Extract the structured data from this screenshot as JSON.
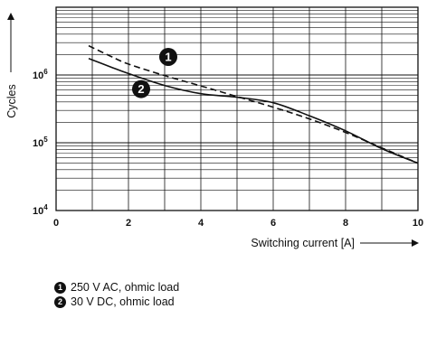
{
  "chart_data": {
    "type": "line",
    "xlabel": "Switching current [A]",
    "ylabel": "Cycles",
    "xlim": [
      0,
      10
    ],
    "ylim": [
      10000,
      10000000
    ],
    "y_scale": "log",
    "grid": true,
    "x_ticks": [
      0,
      2,
      4,
      6,
      8,
      10
    ],
    "y_ticks": [
      {
        "value": 10000,
        "base": "10",
        "exp": "4"
      },
      {
        "value": 100000,
        "base": "10",
        "exp": "5"
      },
      {
        "value": 1000000,
        "base": "10",
        "exp": "6"
      }
    ],
    "series": [
      {
        "marker": "1",
        "style": "dashed",
        "x": [
          0.9,
          1.5,
          2,
          3,
          4,
          5,
          6,
          7,
          8,
          9,
          10
        ],
        "y": [
          2700000,
          1900000,
          1450000,
          980000,
          690000,
          480000,
          335000,
          225000,
          142000,
          84000,
          50000
        ]
      },
      {
        "marker": "2",
        "style": "solid",
        "x": [
          0.9,
          1.5,
          2,
          3,
          4,
          5,
          6,
          7,
          8,
          9,
          10
        ],
        "y": [
          1750000,
          1320000,
          1050000,
          700000,
          530000,
          470000,
          390000,
          250000,
          150000,
          82000,
          50000
        ]
      }
    ]
  },
  "legend": {
    "items": [
      {
        "marker": "1",
        "label": "250 V AC, ohmic load"
      },
      {
        "marker": "2",
        "label": "30 V DC, ohmic load"
      }
    ]
  }
}
